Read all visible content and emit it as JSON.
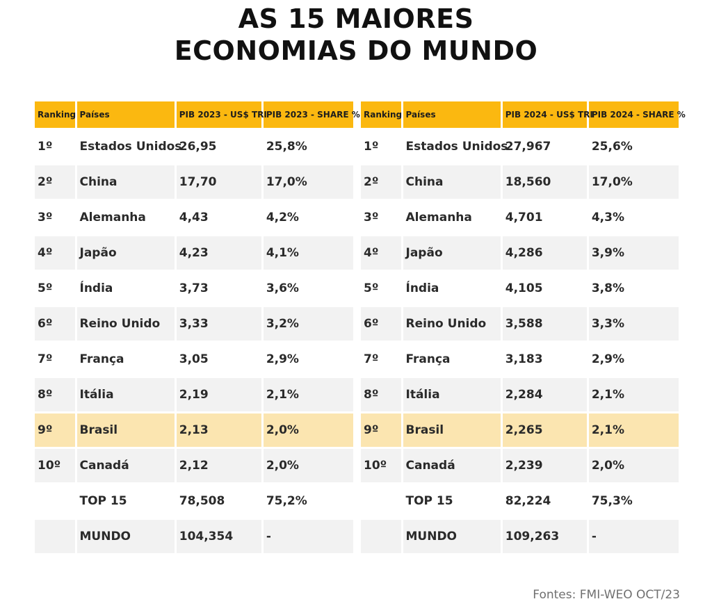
{
  "title": {
    "line1": "AS 15 MAIORES",
    "line2": "ECONOMIAS DO MUNDO"
  },
  "source": "Fontes: FMI-WEO OCT/23",
  "colors": {
    "header": "#fbb810",
    "highlight_row": "#fbe5b0",
    "stripe": "#f2f2f2"
  },
  "chart_data": [
    {
      "type": "table",
      "title": "PIB 2023",
      "columns": [
        "Ranking",
        "Países",
        "PIB 2023 - US$ TRI",
        "PIB 2023 - SHARE %"
      ],
      "rows": [
        [
          "1º",
          "Estados Unidos",
          "26,95",
          "25,8%"
        ],
        [
          "2º",
          "China",
          "17,70",
          "17,0%"
        ],
        [
          "3º",
          "Alemanha",
          "4,43",
          "4,2%"
        ],
        [
          "4º",
          "Japão",
          "4,23",
          "4,1%"
        ],
        [
          "5º",
          "Índia",
          "3,73",
          "3,6%"
        ],
        [
          "6º",
          "Reino Unido",
          "3,33",
          "3,2%"
        ],
        [
          "7º",
          "França",
          "3,05",
          "2,9%"
        ],
        [
          "8º",
          "Itália",
          "2,19",
          "2,1%"
        ],
        [
          "9º",
          "Brasil",
          "2,13",
          "2,0%"
        ],
        [
          "10º",
          "Canadá",
          "2,12",
          "2,0%"
        ],
        [
          "",
          "TOP 15",
          "78,508",
          "75,2%"
        ],
        [
          "",
          "MUNDO",
          "104,354",
          "-"
        ]
      ],
      "highlight_row": 8
    },
    {
      "type": "table",
      "title": "PIB 2024",
      "columns": [
        "Ranking",
        "Países",
        "PIB 2024 - US$ TRI",
        "PIB 2024 - SHARE %"
      ],
      "rows": [
        [
          "1º",
          "Estados Unidos",
          "27,967",
          "25,6%"
        ],
        [
          "2º",
          "China",
          "18,560",
          "17,0%"
        ],
        [
          "3º",
          "Alemanha",
          "4,701",
          "4,3%"
        ],
        [
          "4º",
          "Japão",
          "4,286",
          "3,9%"
        ],
        [
          "5º",
          "Índia",
          "4,105",
          "3,8%"
        ],
        [
          "6º",
          "Reino Unido",
          "3,588",
          "3,3%"
        ],
        [
          "7º",
          "França",
          "3,183",
          "2,9%"
        ],
        [
          "8º",
          "Itália",
          "2,284",
          "2,1%"
        ],
        [
          "9º",
          "Brasil",
          "2,265",
          "2,1%"
        ],
        [
          "10º",
          "Canadá",
          "2,239",
          "2,0%"
        ],
        [
          "",
          "TOP 15",
          "82,224",
          "75,3%"
        ],
        [
          "",
          "MUNDO",
          "109,263",
          "-"
        ]
      ],
      "highlight_row": 8
    }
  ]
}
